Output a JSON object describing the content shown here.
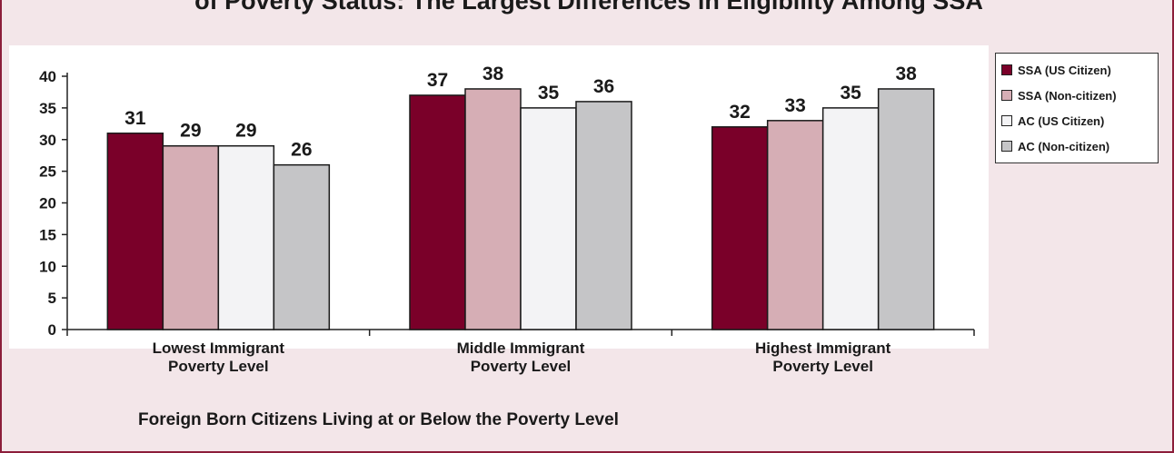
{
  "top_title_fragment": "of Poverty Status: The Largest Differences in Eligibility Among SSA",
  "caption": "Foreign Born Citizens Living at or Below the Poverty Level",
  "colors": {
    "panel_bg": "#f3e6e9",
    "border": "#8c1e3a",
    "series": [
      "#7a0029",
      "#d6aeb5",
      "#f3f3f5",
      "#c5c5c7"
    ]
  },
  "chart_data": {
    "type": "bar",
    "categories": [
      "Lowest Immigrant\nPoverty Level",
      "Middle Immigrant\nPoverty Level",
      "Highest Immigrant\nPoverty Level"
    ],
    "series": [
      {
        "name": "SSA (US Citizen)",
        "values": [
          31,
          37,
          32
        ]
      },
      {
        "name": "SSA (Non-citizen)",
        "values": [
          29,
          38,
          33
        ]
      },
      {
        "name": "AC (US Citizen)",
        "values": [
          29,
          35,
          35
        ]
      },
      {
        "name": "AC (Non-citizen)",
        "values": [
          26,
          36,
          38
        ]
      }
    ],
    "ylim": [
      0,
      40
    ],
    "yticks": [
      0,
      5,
      10,
      15,
      20,
      25,
      30,
      35,
      40
    ],
    "xlabel": "",
    "ylabel": "",
    "grid": false,
    "legend_position": "top-right"
  }
}
